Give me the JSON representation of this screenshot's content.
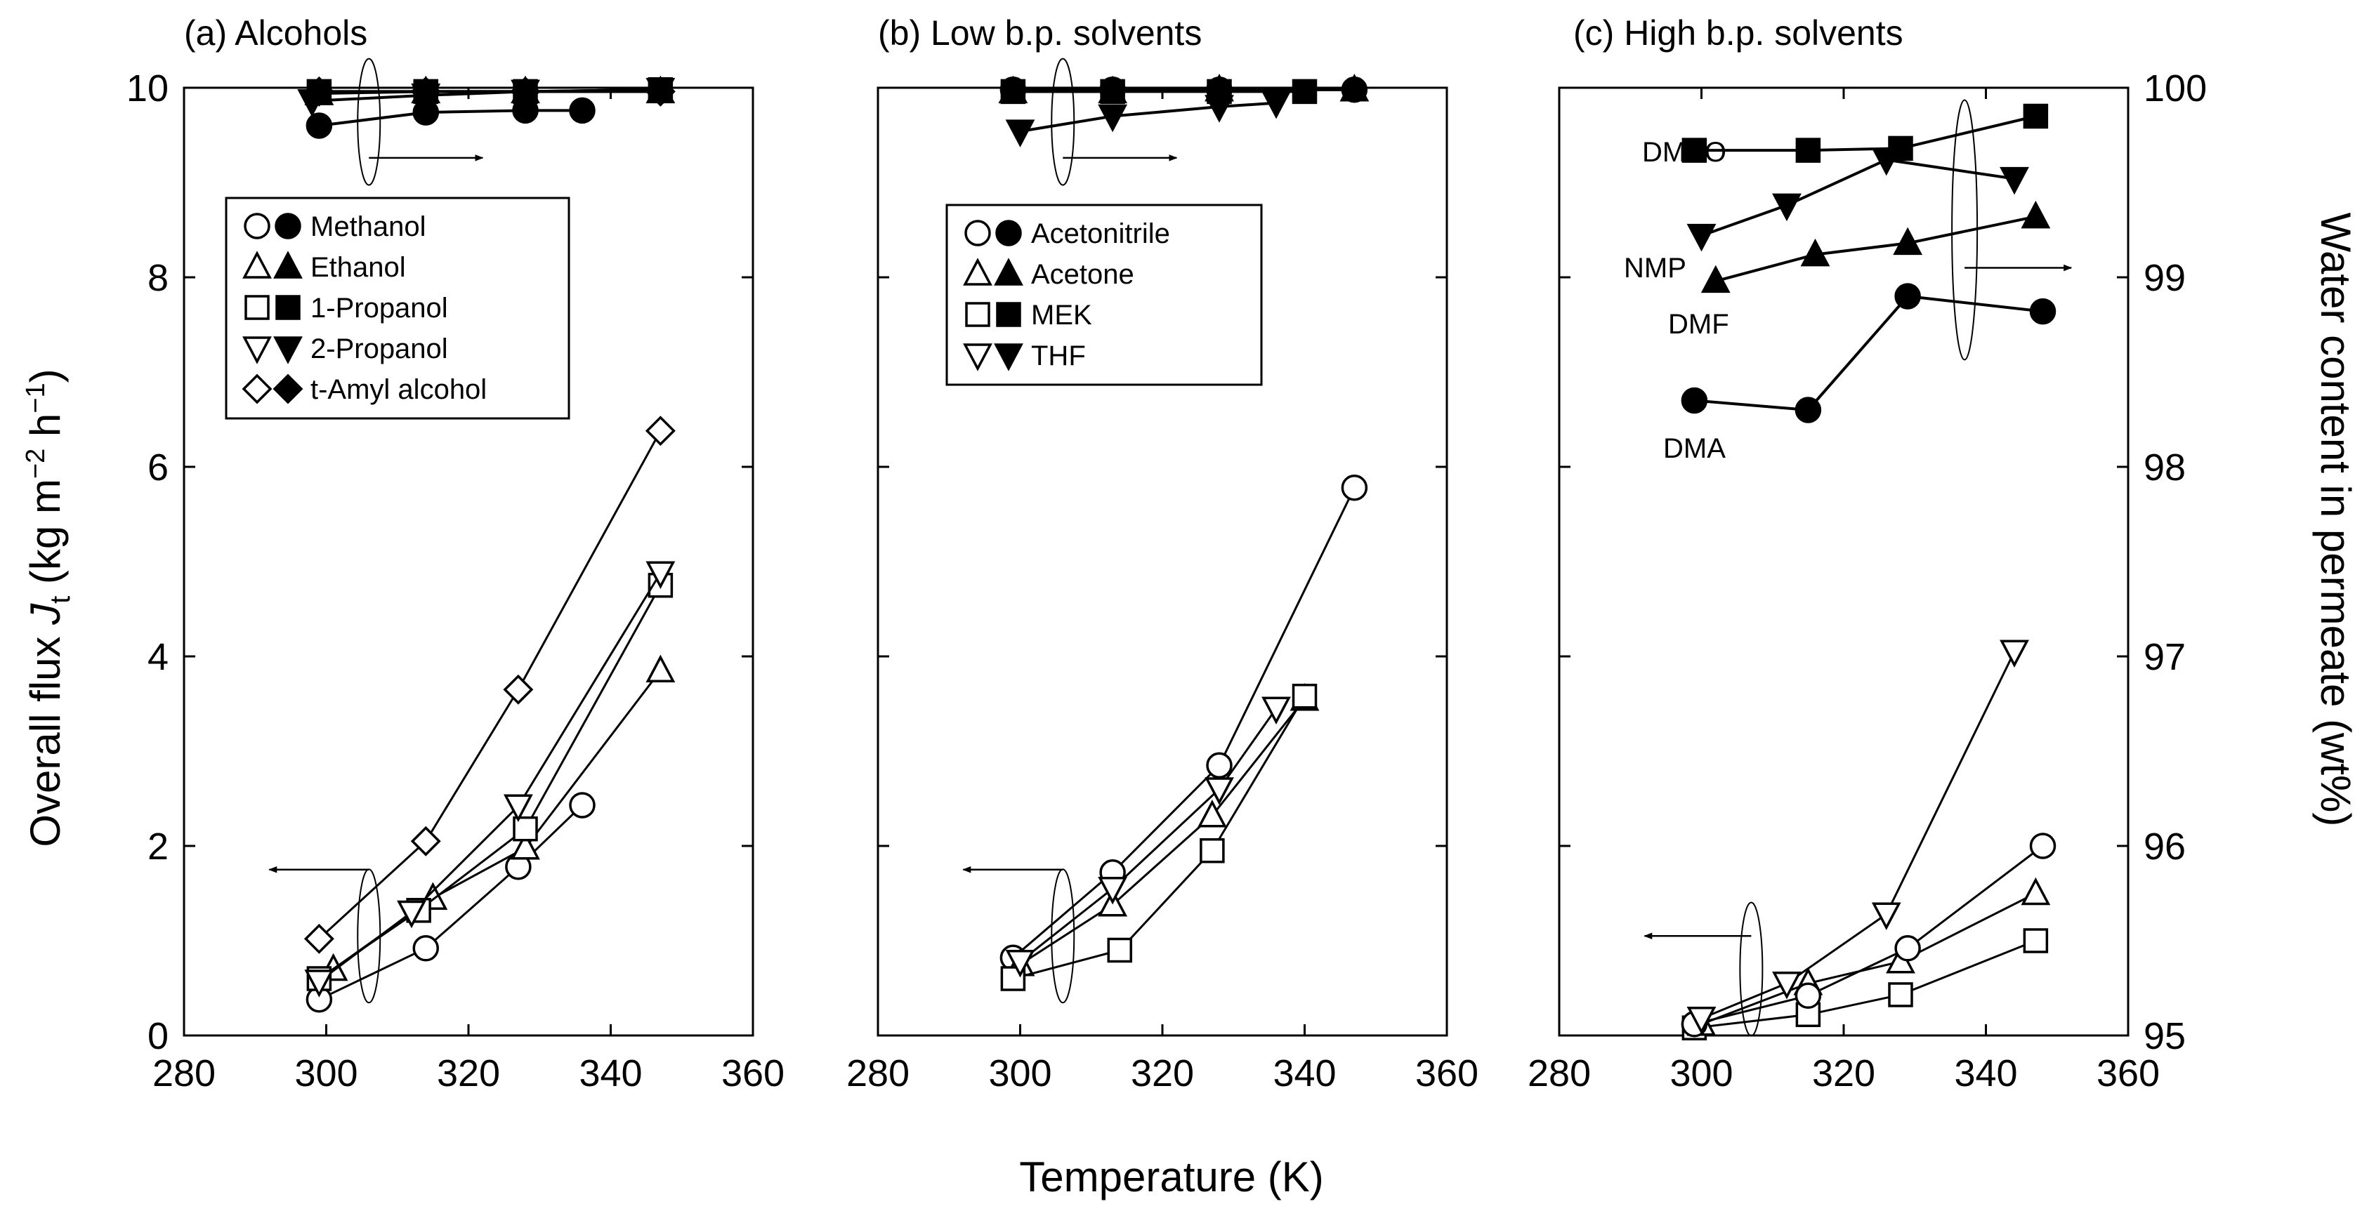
{
  "chart_data": {
    "type": "line",
    "shared_xlabel": "Temperature (K)",
    "left_ylabel": "Overall flux J_t (kg m^-2 h^-1)",
    "left_ylabel_parts": {
      "pre": "Overall flux ",
      "var": "J",
      "sub": "t",
      "mid": " (kg m",
      "sup1": "−2",
      "mid2": " h",
      "sup2": "−1",
      "post": ")"
    },
    "right_ylabel": "Water content in permeate (wt%)",
    "xlim": [
      280,
      360
    ],
    "x_ticks": [
      280,
      300,
      320,
      340,
      360
    ],
    "x_tick_labels": [
      "280",
      "300",
      "320",
      "340",
      "360"
    ],
    "ylim_left": [
      0,
      10
    ],
    "y_ticks_left": [
      0,
      2,
      4,
      6,
      8,
      10
    ],
    "y_tick_labels_left": [
      "0",
      "2",
      "4",
      "6",
      "8",
      "10"
    ],
    "ylim_right": [
      95,
      100
    ],
    "y_ticks_right": [
      95,
      96,
      97,
      98,
      99,
      100
    ],
    "y_tick_labels_right": [
      "95",
      "96",
      "97",
      "98",
      "99",
      "100"
    ],
    "panels": [
      {
        "title": "(a) Alcohols",
        "flux_series": [
          {
            "name": "Methanol",
            "marker": "circle",
            "x": [
              299,
              314,
              327,
              336
            ],
            "y": [
              0.38,
              0.92,
              1.78,
              2.43
            ]
          },
          {
            "name": "Ethanol",
            "marker": "triangle-up",
            "x": [
              301,
              315,
              328,
              347
            ],
            "y": [
              0.7,
              1.45,
              1.98,
              3.85
            ]
          },
          {
            "name": "1-Propanol",
            "marker": "square",
            "x": [
              299,
              313,
              328,
              347
            ],
            "y": [
              0.6,
              1.32,
              2.18,
              4.75
            ]
          },
          {
            "name": "2-Propanol",
            "marker": "triangle-down",
            "x": [
              299,
              312,
              327,
              347
            ],
            "y": [
              0.57,
              1.3,
              2.42,
              4.88
            ]
          },
          {
            "name": "t-Amyl alcohol",
            "marker": "diamond",
            "x": [
              299,
              314,
              327,
              347
            ],
            "y": [
              1.02,
              2.05,
              3.65,
              6.38
            ]
          }
        ],
        "water_series": [
          {
            "name": "Methanol",
            "marker": "circle",
            "x": [
              299,
              314,
              328,
              336
            ],
            "y": [
              99.8,
              99.87,
              99.88,
              99.88
            ]
          },
          {
            "name": "Ethanol",
            "marker": "triangle-up",
            "x": [
              299,
              314,
              328,
              347
            ],
            "y": [
              99.97,
              99.98,
              99.98,
              99.98
            ]
          },
          {
            "name": "1-Propanol",
            "marker": "square",
            "x": [
              299,
              314,
              328,
              347
            ],
            "y": [
              99.98,
              99.98,
              99.98,
              99.99
            ]
          },
          {
            "name": "2-Propanol",
            "marker": "triangle-down",
            "x": [
              298,
              314,
              328,
              347
            ],
            "y": [
              99.93,
              99.96,
              99.98,
              99.99
            ]
          },
          {
            "name": "t-Amyl alcohol",
            "marker": "diamond",
            "x": [
              299,
              314,
              328,
              347
            ],
            "y": [
              99.98,
              99.98,
              99.98,
              99.98
            ]
          }
        ],
        "legend": [
          "Methanol",
          "Ethanol",
          "1-Propanol",
          "2-Propanol",
          "t-Amyl alcohol"
        ],
        "flux_arrow_label": "←",
        "water_arrow_label": "→"
      },
      {
        "title": "(b) Low b.p. solvents",
        "flux_series": [
          {
            "name": "Acetonitrile",
            "marker": "circle",
            "x": [
              299,
              313,
              328,
              347
            ],
            "y": [
              0.82,
              1.72,
              2.85,
              5.78
            ]
          },
          {
            "name": "Acetone",
            "marker": "triangle-up",
            "x": [
              300,
              313,
              327,
              340
            ],
            "y": [
              0.75,
              1.38,
              2.32,
              3.55
            ]
          },
          {
            "name": "MEK",
            "marker": "square",
            "x": [
              299,
              314,
              327,
              340
            ],
            "y": [
              0.6,
              0.9,
              1.95,
              3.58
            ]
          },
          {
            "name": "THF",
            "marker": "triangle-down",
            "x": [
              300,
              313,
              328,
              336
            ],
            "y": [
              0.78,
              1.55,
              2.6,
              3.45
            ]
          }
        ],
        "water_series": [
          {
            "name": "Acetonitrile",
            "marker": "circle",
            "x": [
              299,
              313,
              328,
              347
            ],
            "y": [
              99.99,
              99.99,
              99.99,
              99.99
            ]
          },
          {
            "name": "Acetone",
            "marker": "triangle-up",
            "x": [
              299,
              313,
              328,
              347
            ],
            "y": [
              99.98,
              99.98,
              99.99,
              99.99
            ]
          },
          {
            "name": "MEK",
            "marker": "square",
            "x": [
              299,
              313,
              328,
              340
            ],
            "y": [
              99.98,
              99.98,
              99.98,
              99.98
            ]
          },
          {
            "name": "THF",
            "marker": "triangle-down",
            "x": [
              300,
              313,
              328,
              336
            ],
            "y": [
              99.77,
              99.85,
              99.9,
              99.92
            ]
          }
        ],
        "legend": [
          "Acetonitrile",
          "Acetone",
          "MEK",
          "THF"
        ],
        "flux_arrow_label": "←",
        "water_arrow_label": "→"
      },
      {
        "title": "(c) High b.p. solvents",
        "flux_series": [
          {
            "name": "DMSO",
            "marker": "square",
            "x": [
              299,
              315,
              328,
              347
            ],
            "y": [
              0.08,
              0.22,
              0.43,
              1.0
            ]
          },
          {
            "name": "DMF",
            "marker": "triangle-up",
            "x": [
              300,
              315,
              328,
              347
            ],
            "y": [
              0.12,
              0.55,
              0.78,
              1.5
            ]
          },
          {
            "name": "DMA",
            "marker": "circle",
            "x": [
              299,
              315,
              329,
              348
            ],
            "y": [
              0.12,
              0.42,
              0.92,
              2.0
            ]
          },
          {
            "name": "NMP",
            "marker": "triangle-down",
            "x": [
              300,
              312,
              326,
              344
            ],
            "y": [
              0.18,
              0.55,
              1.28,
              4.05
            ]
          }
        ],
        "water_series": [
          {
            "name": "DMSO",
            "marker": "square",
            "x": [
              299,
              315,
              328,
              347
            ],
            "y": [
              99.67,
              99.67,
              99.68,
              99.85
            ]
          },
          {
            "name": "NMP",
            "marker": "triangle-down",
            "x": [
              300,
              312,
              326,
              344
            ],
            "y": [
              99.22,
              99.38,
              99.62,
              99.52
            ]
          },
          {
            "name": "DMF",
            "marker": "triangle-up",
            "x": [
              302,
              316,
              329,
              347
            ],
            "y": [
              98.98,
              99.12,
              99.18,
              99.32
            ]
          },
          {
            "name": "DMA",
            "marker": "circle",
            "x": [
              299,
              315,
              329,
              348
            ],
            "y": [
              98.35,
              98.3,
              98.9,
              98.82
            ]
          }
        ],
        "labels": [
          "DMSO",
          "NMP",
          "DMF",
          "DMA"
        ],
        "flux_arrow_label": "←",
        "water_arrow_label": "→"
      }
    ]
  }
}
